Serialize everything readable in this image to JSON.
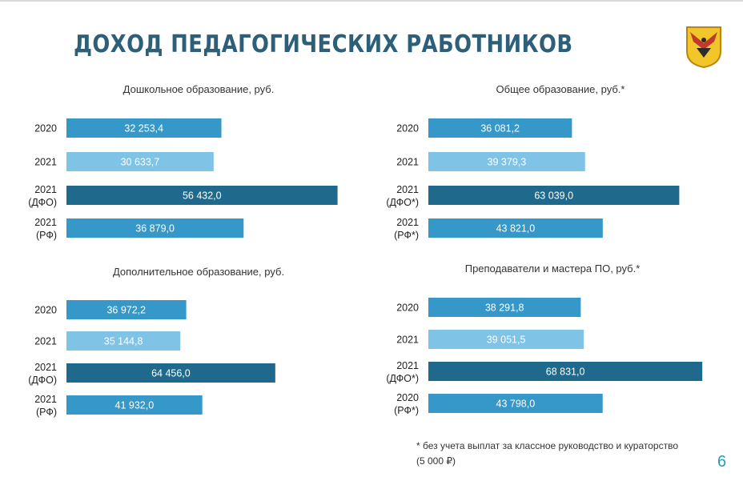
{
  "slide": {
    "title": "ДОХОД ПЕДАГОГИЧЕСКИХ РАБОТНИКОВ",
    "footnote_line1": "* без учета выплат за классное руководство и кураторство",
    "footnote_line2": "(5 000 ₽)",
    "page_number": "6"
  },
  "colors": {
    "bar_dark": "#1f6a8c",
    "bar_mid": "#3598c8",
    "bar_light": "#7fc3e6",
    "title": "#2e5f78",
    "page_number": "#2a9bb7"
  },
  "chart_data": [
    {
      "type": "bar",
      "orientation": "horizontal",
      "title": "Дошкольное образование, руб.",
      "categories": [
        [
          "2020"
        ],
        [
          "2021"
        ],
        [
          "2021",
          "(ДФО)"
        ],
        [
          "2021",
          "(РФ)"
        ]
      ],
      "values": [
        32253.4,
        30633.7,
        56432.0,
        36879.0
      ],
      "value_labels": [
        "32 253,4",
        "30 633,7",
        "56 432,0",
        "36 879,0"
      ],
      "bar_colors": [
        "#3598c8",
        "#7fc3e6",
        "#1f6a8c",
        "#3598c8"
      ],
      "xlim": [
        0,
        58000
      ]
    },
    {
      "type": "bar",
      "orientation": "horizontal",
      "title": "Общее образование, руб.*",
      "categories": [
        [
          "2020"
        ],
        [
          "2021"
        ],
        [
          "2021",
          "(ДФО*)"
        ],
        [
          "2021",
          "(РФ*)"
        ]
      ],
      "values": [
        36081.2,
        39379.3,
        63039.0,
        43821.0
      ],
      "value_labels": [
        "36 081,2",
        "39 379,3",
        "63 039,0",
        "43 821,0"
      ],
      "bar_colors": [
        "#3598c8",
        "#7fc3e6",
        "#1f6a8c",
        "#3598c8"
      ],
      "xlim": [
        0,
        70000
      ]
    },
    {
      "type": "bar",
      "orientation": "horizontal",
      "title": "Дополнительное образование, руб.",
      "categories": [
        [
          "2020"
        ],
        [
          "2021"
        ],
        [
          "2021",
          "(ДФО)"
        ],
        [
          "2021",
          "(РФ)"
        ]
      ],
      "values": [
        36972.2,
        35144.8,
        64456.0,
        41932.0
      ],
      "value_labels": [
        "36 972,2",
        "35 144,8",
        "64 456,0",
        "41 932,0"
      ],
      "bar_colors": [
        "#3598c8",
        "#7fc3e6",
        "#1f6a8c",
        "#3598c8"
      ],
      "xlim": [
        0,
        86000
      ]
    },
    {
      "type": "bar",
      "orientation": "horizontal",
      "title": "Преподаватели и мастера ПО, руб.*",
      "categories": [
        [
          "2020"
        ],
        [
          "2021"
        ],
        [
          "2021",
          "(ДФО*)"
        ],
        [
          "2020",
          "(РФ*)"
        ]
      ],
      "values": [
        38291.8,
        39051.5,
        68831.0,
        43798.0
      ],
      "value_labels": [
        "38 291,8",
        "39 051,5",
        "68 831,0",
        "43 798,0"
      ],
      "bar_colors": [
        "#3598c8",
        "#7fc3e6",
        "#1f6a8c",
        "#3598c8"
      ],
      "xlim": [
        0,
        70000
      ]
    }
  ]
}
